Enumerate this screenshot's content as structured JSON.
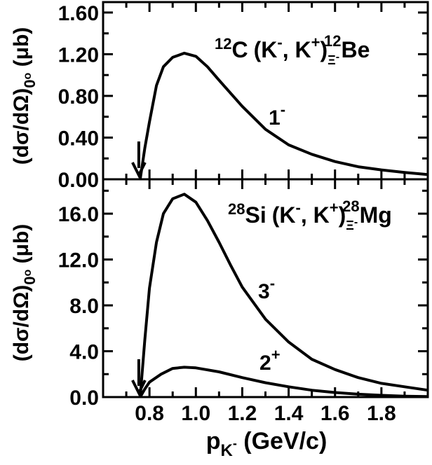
{
  "chart_data": [
    {
      "type": "line",
      "reaction": {
        "target_mass": "12",
        "target": "C",
        "probe": "(K",
        "probe_charge": "-",
        "comma": ", K",
        "ejectile_charge": "+",
        "close": ")",
        "hyper_sub": "Ξ",
        "hyper_sub_charge": "-",
        "final_mass": "12",
        "final": "Be"
      },
      "ylabel": {
        "main": "(dσ/dΩ)",
        "sub": "0",
        "sup": "o",
        "unit": " (μb)"
      },
      "xlim": [
        0.6,
        2.0
      ],
      "ylim": [
        0,
        1.7
      ],
      "yticks": [
        0.0,
        0.4,
        0.8,
        1.2,
        1.6
      ],
      "ytick_labels": [
        "0.00",
        "0.40",
        "0.80",
        "1.20",
        "1.60"
      ],
      "threshold_arrow_x": 0.76,
      "series": [
        {
          "name": "1",
          "name_sup": "-",
          "x": [
            0.76,
            0.78,
            0.8,
            0.83,
            0.86,
            0.9,
            0.95,
            1.0,
            1.05,
            1.1,
            1.2,
            1.3,
            1.4,
            1.5,
            1.6,
            1.7,
            1.8,
            1.9,
            2.0
          ],
          "y": [
            0.0,
            0.3,
            0.55,
            0.9,
            1.08,
            1.17,
            1.21,
            1.18,
            1.08,
            0.95,
            0.7,
            0.48,
            0.33,
            0.24,
            0.17,
            0.12,
            0.09,
            0.065,
            0.045
          ]
        }
      ]
    },
    {
      "type": "line",
      "reaction": {
        "target_mass": "28",
        "target": "Si",
        "probe": "(K",
        "probe_charge": "-",
        "comma": ", K",
        "ejectile_charge": "+",
        "close": ")",
        "hyper_sub": "Ξ",
        "hyper_sub_charge": "-",
        "final_mass": "28",
        "final": "Mg"
      },
      "ylabel": {
        "main": "(dσ/dΩ)",
        "sub": "0",
        "sup": "o",
        "unit": " (μb)"
      },
      "xlabel": {
        "main": "p",
        "sub": "K",
        "sub_sup": "-",
        "unit": " (GeV/c)"
      },
      "xlim": [
        0.6,
        2.0
      ],
      "ylim": [
        0,
        19
      ],
      "xticks": [
        0.8,
        1.0,
        1.2,
        1.4,
        1.6,
        1.8
      ],
      "xtick_labels": [
        "0.8",
        "1.0",
        "1.2",
        "1.4",
        "1.6",
        "1.8"
      ],
      "yticks": [
        0,
        4,
        8,
        12,
        16
      ],
      "ytick_labels": [
        "0.0",
        "4.0",
        "8.0",
        "12.0",
        "16.0"
      ],
      "threshold_arrow_x": 0.76,
      "series": [
        {
          "name": "3",
          "name_sup": "-",
          "x": [
            0.76,
            0.78,
            0.8,
            0.83,
            0.86,
            0.9,
            0.95,
            1.0,
            1.05,
            1.1,
            1.15,
            1.2,
            1.3,
            1.4,
            1.5,
            1.6,
            1.7,
            1.8,
            1.9,
            2.0
          ],
          "y": [
            0.0,
            5.0,
            9.5,
            13.5,
            16.0,
            17.3,
            17.7,
            17.0,
            15.4,
            13.5,
            11.5,
            9.6,
            6.8,
            4.8,
            3.3,
            2.4,
            1.7,
            1.2,
            0.9,
            0.6
          ]
        },
        {
          "name": "2",
          "name_sup": "+",
          "x": [
            0.76,
            0.78,
            0.8,
            0.85,
            0.9,
            0.95,
            1.0,
            1.1,
            1.2,
            1.3,
            1.4,
            1.5,
            1.6,
            1.7,
            1.8,
            1.9,
            2.0
          ],
          "y": [
            0.0,
            0.7,
            1.3,
            2.0,
            2.5,
            2.6,
            2.55,
            2.2,
            1.7,
            1.25,
            0.9,
            0.6,
            0.4,
            0.25,
            0.15,
            0.08,
            0.04
          ]
        }
      ]
    }
  ]
}
